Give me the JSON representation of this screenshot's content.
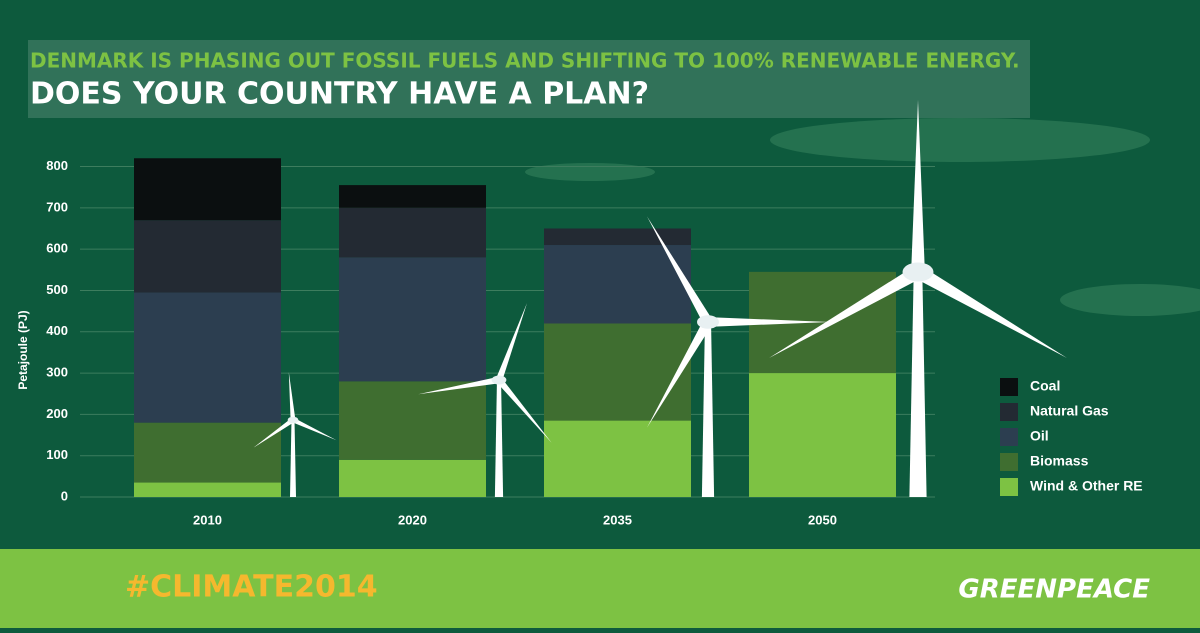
{
  "chart_data": {
    "type": "stacked-bar",
    "title": "DENMARK IS PHASING OUT FOSSIL FUELS AND SHIFTING TO 100% RENEWABLE ENERGY.",
    "subtitle": "DOES YOUR COUNTRY HAVE A PLAN?",
    "y_label": "Petajoule (PJ)",
    "categories": [
      "2010",
      "2020",
      "2035",
      "2050"
    ],
    "series": [
      {
        "name": "Wind & Other RE",
        "color": "#7dc243",
        "values": [
          35,
          90,
          185,
          300
        ]
      },
      {
        "name": "Biomass",
        "color": "#3f6e30",
        "values": [
          145,
          190,
          235,
          245
        ]
      },
      {
        "name": "Oil",
        "color": "#2c3e50",
        "values": [
          315,
          300,
          190,
          0
        ]
      },
      {
        "name": "Natural Gas",
        "color": "#232a33",
        "values": [
          175,
          120,
          40,
          0
        ]
      },
      {
        "name": "Coal",
        "color": "#0b0f10",
        "values": [
          150,
          55,
          0,
          0
        ]
      }
    ],
    "ylim": [
      0,
      840
    ],
    "yticks": [
      0,
      100,
      200,
      300,
      400,
      500,
      600,
      700,
      800
    ],
    "grid": true,
    "legend": "right"
  },
  "footer": {
    "hashtag": "#CLIMATE2014",
    "logo": "GREENPEACE"
  }
}
